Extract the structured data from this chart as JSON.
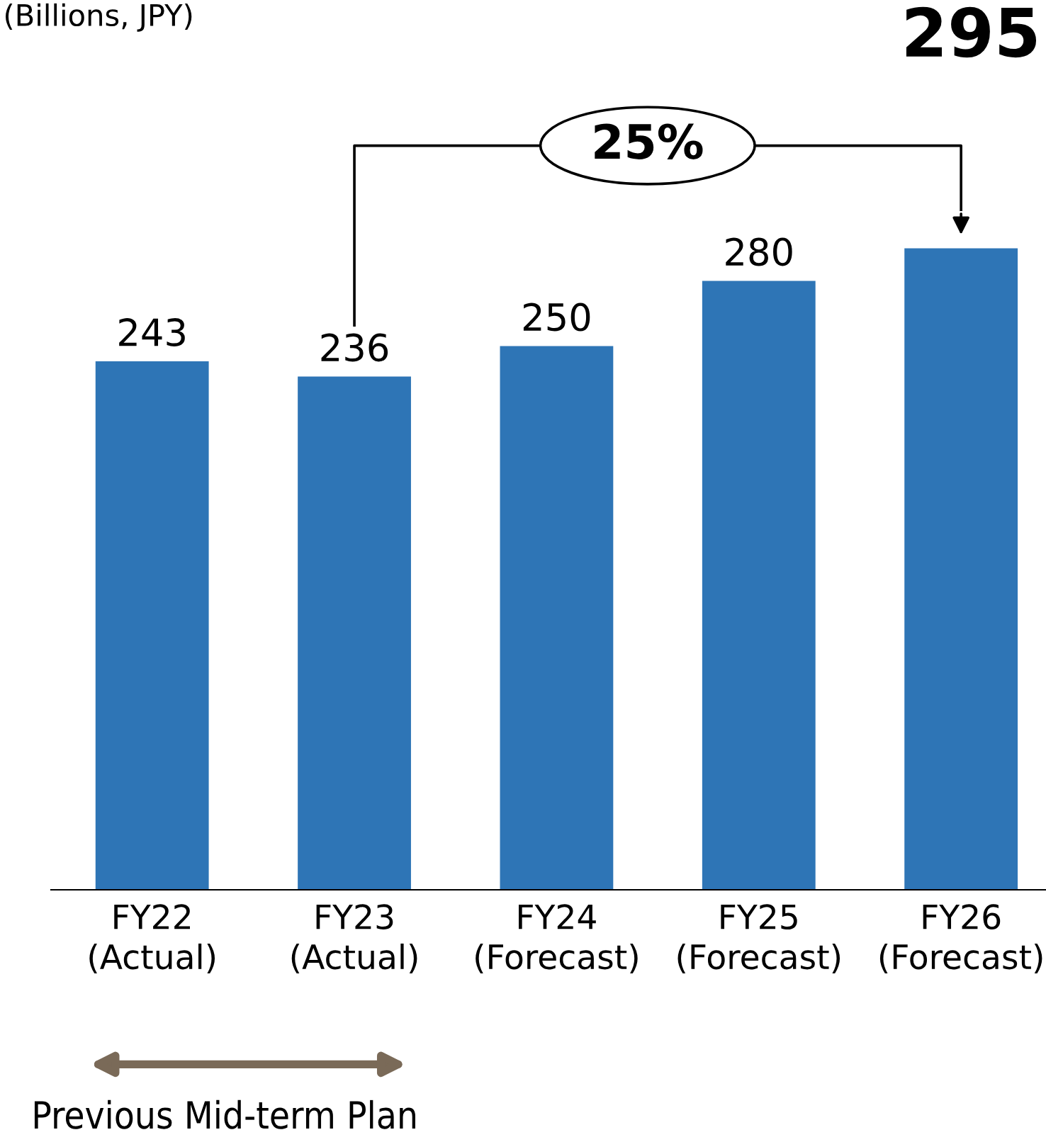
{
  "chart_data": {
    "type": "bar",
    "subtitle": "(Billions, JPY)",
    "categories": [
      "FY22\n(Actual)",
      "FY23\n(Actual)",
      "FY24\n(Forecast)",
      "FY25\n(Forecast)",
      "FY26\n(Forecast)"
    ],
    "values": [
      243,
      236,
      250,
      280,
      295
    ],
    "color": "#2e75b6",
    "value_labels": [
      "243",
      "236",
      "250",
      "280",
      "295"
    ],
    "tick_labels": "x",
    "grid": false,
    "annotations": [
      "25%",
      "Previous Mid-term Plan"
    ]
  }
}
